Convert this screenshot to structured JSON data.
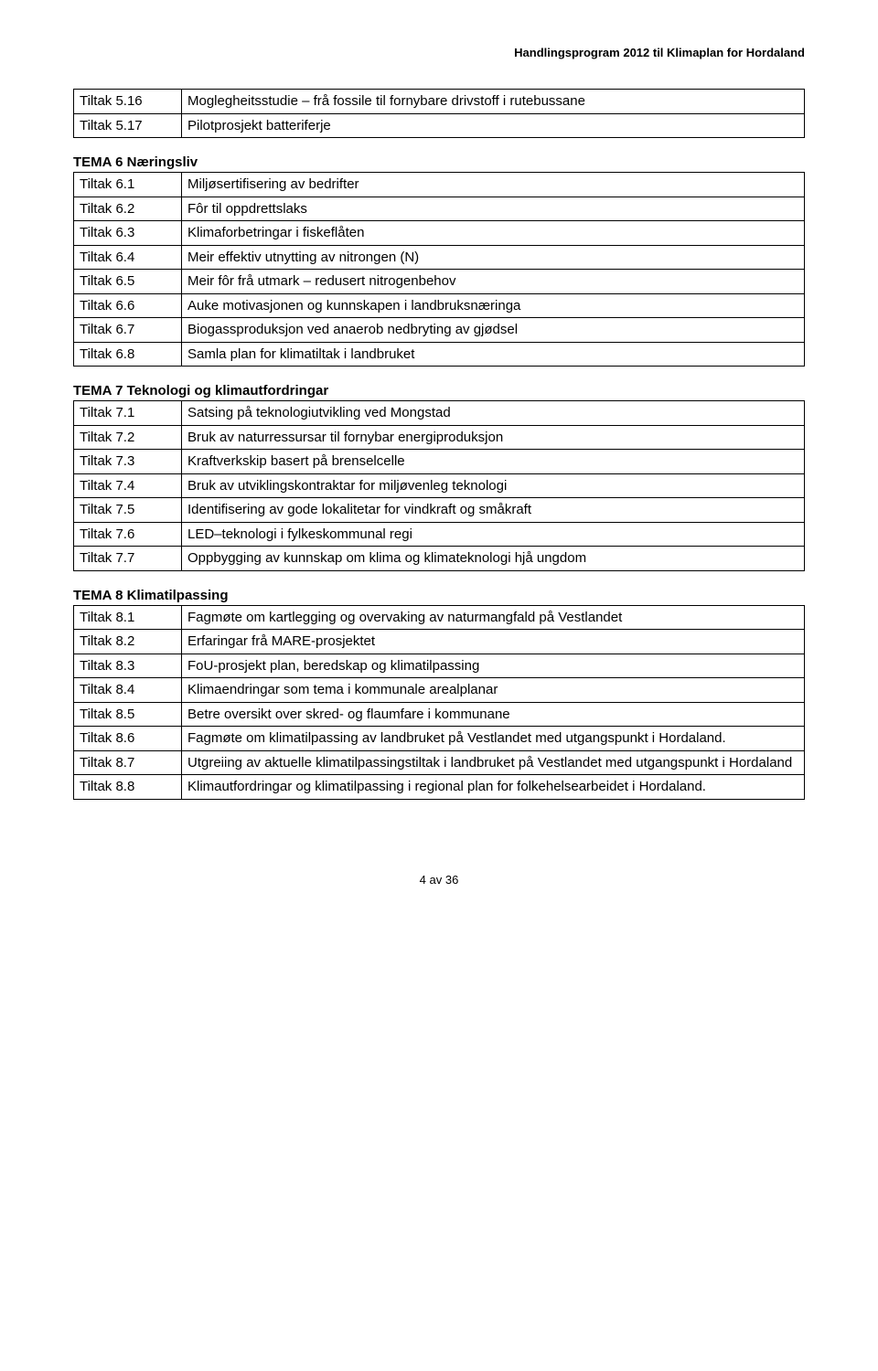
{
  "header": "Handlingsprogram 2012 til Klimaplan for Hordaland",
  "footer": "4 av 36",
  "sections": [
    {
      "title": null,
      "rows": [
        {
          "label": "Tiltak 5.16",
          "text": "Moglegheitsstudie – frå fossile til fornybare drivstoff i rutebussane"
        },
        {
          "label": "Tiltak 5.17",
          "text": "Pilotprosjekt batteriferje"
        }
      ]
    },
    {
      "title": "TEMA 6 Næringsliv",
      "rows": [
        {
          "label": "Tiltak 6.1",
          "text": "Miljøsertifisering av bedrifter"
        },
        {
          "label": "Tiltak 6.2",
          "text": "Fôr til oppdrettslaks"
        },
        {
          "label": "Tiltak 6.3",
          "text": "Klimaforbetringar i fiskeflåten"
        },
        {
          "label": "Tiltak 6.4",
          "text": "Meir effektiv utnytting av nitrongen (N)"
        },
        {
          "label": "Tiltak 6.5",
          "text": "Meir fôr frå utmark – redusert nitrogenbehov"
        },
        {
          "label": "Tiltak 6.6",
          "text": "Auke motivasjonen og kunnskapen i landbruksnæringa"
        },
        {
          "label": "Tiltak 6.7",
          "text": "Biogassproduksjon ved anaerob nedbryting av gjødsel"
        },
        {
          "label": "Tiltak 6.8",
          "text": "Samla plan for klimatiltak i landbruket"
        }
      ]
    },
    {
      "title": "TEMA 7 Teknologi og klimautfordringar",
      "rows": [
        {
          "label": "Tiltak 7.1",
          "text": "Satsing på teknologiutvikling ved Mongstad"
        },
        {
          "label": "Tiltak 7.2",
          "text": "Bruk av naturressursar til fornybar energiproduksjon"
        },
        {
          "label": "Tiltak 7.3",
          "text": "Kraftverkskip basert på brenselcelle"
        },
        {
          "label": "Tiltak 7.4",
          "text": "Bruk av utviklingskontraktar for miljøvenleg teknologi"
        },
        {
          "label": "Tiltak 7.5",
          "text": "Identifisering av gode lokalitetar for vindkraft og småkraft"
        },
        {
          "label": "Tiltak 7.6",
          "text": "LED–teknologi i fylkeskommunal regi"
        },
        {
          "label": "Tiltak 7.7",
          "text": "Oppbygging av kunnskap om klima og klimateknologi hjå ungdom"
        }
      ]
    },
    {
      "title": "TEMA 8 Klimatilpassing",
      "rows": [
        {
          "label": "Tiltak 8.1",
          "text": "Fagmøte om kartlegging og overvaking av naturmangfald på Vestlandet"
        },
        {
          "label": "Tiltak 8.2",
          "text": "Erfaringar frå MARE-prosjektet"
        },
        {
          "label": "Tiltak 8.3",
          "text": "FoU-prosjekt plan, beredskap og klimatilpassing"
        },
        {
          "label": "Tiltak 8.4",
          "text": "Klimaendringar som tema i kommunale arealplanar"
        },
        {
          "label": "Tiltak 8.5",
          "text": "Betre oversikt over skred- og flaumfare i kommunane"
        },
        {
          "label": "Tiltak 8.6",
          "text": "Fagmøte om klimatilpassing av landbruket på Vestlandet med utgangspunkt i Hordaland."
        },
        {
          "label": "Tiltak 8.7",
          "text": "Utgreiing av aktuelle klimatilpassingstiltak i landbruket på Vestlandet med utgangspunkt i Hordaland"
        },
        {
          "label": "Tiltak 8.8",
          "text": "Klimautfordringar og klimatilpassing i regional plan for folkehelsearbeidet i Hordaland."
        }
      ]
    }
  ]
}
